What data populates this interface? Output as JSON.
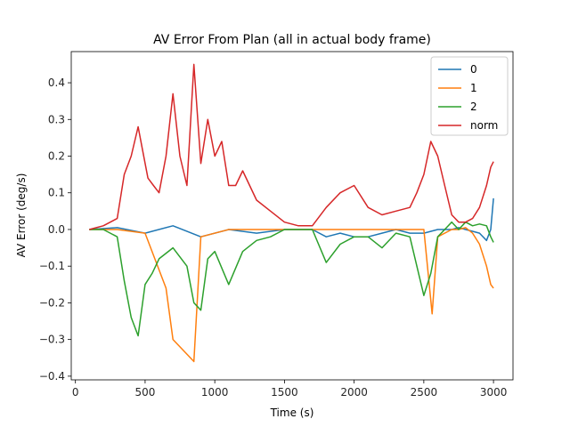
{
  "chart_data": {
    "type": "line",
    "title": "AV Error From Plan (all in actual body frame)",
    "xlabel": "Time (s)",
    "ylabel": "AV Error (deg/s)",
    "xlim": [
      -30,
      3140
    ],
    "ylim": [
      -0.41,
      0.485
    ],
    "xticks": [
      0,
      500,
      1000,
      1500,
      2000,
      2500,
      3000
    ],
    "xtick_labels": [
      "0",
      "500",
      "1000",
      "1500",
      "2000",
      "2500",
      "3000"
    ],
    "yticks": [
      -0.4,
      -0.3,
      -0.2,
      -0.1,
      0.0,
      0.1,
      0.2,
      0.3,
      0.4
    ],
    "ytick_labels": [
      "−0.4",
      "−0.3",
      "−0.2",
      "−0.1",
      "0.0",
      "0.1",
      "0.2",
      "0.3",
      "0.4"
    ],
    "grid": false,
    "legend_position": "top-right",
    "series": [
      {
        "name": "0",
        "color": "#1f77b4",
        "x": [
          100,
          300,
          500,
          700,
          900,
          1100,
          1300,
          1500,
          1700,
          1800,
          1900,
          2000,
          2100,
          2200,
          2300,
          2400,
          2500,
          2600,
          2700,
          2750,
          2800,
          2850,
          2900,
          2950,
          2980,
          3000
        ],
        "y": [
          0.0,
          0.005,
          -0.01,
          0.01,
          -0.02,
          0.0,
          -0.01,
          0.0,
          0.0,
          -0.02,
          -0.01,
          -0.02,
          -0.02,
          -0.01,
          0.0,
          -0.01,
          -0.01,
          0.0,
          0.0,
          0.005,
          0.0,
          -0.005,
          -0.01,
          -0.03,
          0.0,
          0.085
        ]
      },
      {
        "name": "1",
        "color": "#ff7f0e",
        "x": [
          100,
          300,
          500,
          650,
          700,
          850,
          900,
          1100,
          1300,
          1500,
          1700,
          1900,
          2100,
          2300,
          2500,
          2560,
          2600,
          2700,
          2750,
          2800,
          2850,
          2900,
          2950,
          2980,
          3000
        ],
        "y": [
          0.0,
          0.0,
          -0.01,
          -0.16,
          -0.3,
          -0.36,
          -0.02,
          0.0,
          0.0,
          0.0,
          0.0,
          0.0,
          0.0,
          0.0,
          0.0,
          -0.23,
          -0.02,
          0.0,
          0.0,
          0.005,
          -0.01,
          -0.04,
          -0.1,
          -0.15,
          -0.16
        ]
      },
      {
        "name": "2",
        "color": "#2ca02c",
        "x": [
          100,
          200,
          300,
          350,
          400,
          450,
          500,
          550,
          600,
          700,
          800,
          850,
          900,
          950,
          1000,
          1100,
          1200,
          1300,
          1400,
          1500,
          1600,
          1700,
          1800,
          1900,
          2000,
          2100,
          2200,
          2300,
          2400,
          2500,
          2550,
          2600,
          2700,
          2750,
          2800,
          2850,
          2900,
          2950,
          2980,
          3000
        ],
        "y": [
          0.0,
          0.0,
          -0.02,
          -0.14,
          -0.24,
          -0.29,
          -0.15,
          -0.12,
          -0.08,
          -0.05,
          -0.1,
          -0.2,
          -0.22,
          -0.08,
          -0.06,
          -0.15,
          -0.06,
          -0.03,
          -0.02,
          0.0,
          0.0,
          0.0,
          -0.09,
          -0.04,
          -0.02,
          -0.02,
          -0.05,
          -0.01,
          -0.02,
          -0.18,
          -0.12,
          -0.02,
          0.02,
          0.0,
          0.02,
          0.01,
          0.015,
          0.01,
          -0.02,
          -0.035
        ]
      },
      {
        "name": "norm",
        "color": "#d62728",
        "x": [
          100,
          200,
          300,
          350,
          400,
          450,
          480,
          520,
          560,
          600,
          650,
          700,
          750,
          800,
          850,
          900,
          950,
          1000,
          1050,
          1100,
          1150,
          1200,
          1300,
          1400,
          1500,
          1600,
          1700,
          1800,
          1900,
          2000,
          2100,
          2200,
          2300,
          2400,
          2450,
          2500,
          2550,
          2600,
          2650,
          2700,
          2750,
          2800,
          2850,
          2900,
          2950,
          2980,
          3000
        ],
        "y": [
          0.0,
          0.01,
          0.03,
          0.15,
          0.2,
          0.28,
          0.22,
          0.14,
          0.12,
          0.1,
          0.2,
          0.37,
          0.2,
          0.12,
          0.45,
          0.18,
          0.3,
          0.2,
          0.24,
          0.12,
          0.12,
          0.16,
          0.08,
          0.05,
          0.02,
          0.01,
          0.01,
          0.06,
          0.1,
          0.12,
          0.06,
          0.04,
          0.05,
          0.06,
          0.1,
          0.15,
          0.24,
          0.2,
          0.12,
          0.04,
          0.02,
          0.02,
          0.03,
          0.06,
          0.12,
          0.17,
          0.185
        ]
      }
    ]
  }
}
